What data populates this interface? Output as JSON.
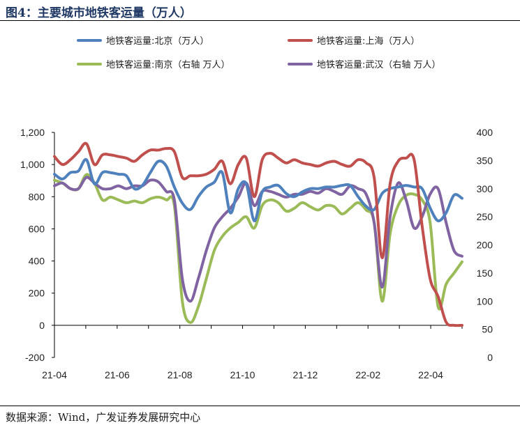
{
  "header": {
    "title": "图4：主要城市地铁客运量（万人）"
  },
  "footer": {
    "source": "数据来源：Wind，广发证券发展研究中心"
  },
  "chart_data": {
    "type": "line",
    "x_ticks": [
      "21-04",
      "21-06",
      "21-08",
      "21-10",
      "21-12",
      "22-02",
      "22-04"
    ],
    "y_left": {
      "min": -200,
      "max": 1200,
      "ticks": [
        "-200",
        "0",
        "200",
        "400",
        "600",
        "800",
        "1,000",
        "1,200"
      ]
    },
    "y_right": {
      "min": 0,
      "max": 400,
      "ticks": [
        "0",
        "50",
        "100",
        "150",
        "200",
        "250",
        "300",
        "350",
        "400"
      ]
    },
    "grid": false,
    "legend_position": "top",
    "series": [
      {
        "name": "地铁客运量:北京（万人）",
        "axis": "left",
        "color": "#4f81bd",
        "values": [
          940,
          910,
          950,
          960,
          1030,
          880,
          950,
          950,
          940,
          930,
          850,
          870,
          950,
          1020,
          990,
          860,
          760,
          720,
          800,
          860,
          890,
          950,
          700,
          850,
          880,
          650,
          830,
          860,
          870,
          820,
          800,
          830,
          850,
          850,
          860,
          860,
          870,
          870,
          800,
          740,
          720,
          820,
          850,
          860,
          870,
          860,
          850,
          730,
          650,
          700,
          810,
          790
        ]
      },
      {
        "name": "地铁客运量:上海（万人）",
        "axis": "left",
        "color": "#c0504d",
        "values": [
          1050,
          1000,
          1030,
          1080,
          1130,
          1000,
          1060,
          1060,
          1050,
          1040,
          1020,
          1060,
          1090,
          1090,
          1100,
          1080,
          920,
          930,
          930,
          940,
          970,
          1020,
          880,
          1000,
          1040,
          800,
          1030,
          1070,
          1040,
          1010,
          1030,
          1010,
          1000,
          990,
          1010,
          1020,
          1000,
          990,
          1030,
          1010,
          920,
          420,
          880,
          1020,
          1040,
          1030,
          620,
          290,
          180,
          20,
          0,
          0
        ]
      },
      {
        "name": "地铁客运量:南京（右轴 万人）",
        "axis": "right",
        "color": "#9bbb59",
        "values": [
          315,
          310,
          300,
          300,
          325,
          310,
          280,
          285,
          280,
          275,
          278,
          275,
          282,
          285,
          280,
          270,
          100,
          62,
          90,
          140,
          190,
          215,
          230,
          240,
          250,
          230,
          270,
          280,
          275,
          260,
          265,
          275,
          268,
          262,
          270,
          268,
          255,
          265,
          275,
          262,
          240,
          100,
          220,
          270,
          288,
          290,
          280,
          240,
          90,
          130,
          150,
          170
        ]
      },
      {
        "name": "地铁客运量:武汉（右轴 万人）",
        "axis": "right",
        "color": "#8064a2",
        "values": [
          305,
          310,
          300,
          300,
          320,
          310,
          300,
          300,
          305,
          300,
          305,
          305,
          315,
          312,
          295,
          280,
          140,
          100,
          140,
          190,
          230,
          250,
          265,
          285,
          310,
          270,
          295,
          295,
          290,
          285,
          290,
          290,
          295,
          292,
          300,
          295,
          290,
          305,
          300,
          290,
          240,
          125,
          250,
          310,
          280,
          230,
          250,
          290,
          300,
          240,
          190,
          180
        ]
      }
    ]
  }
}
